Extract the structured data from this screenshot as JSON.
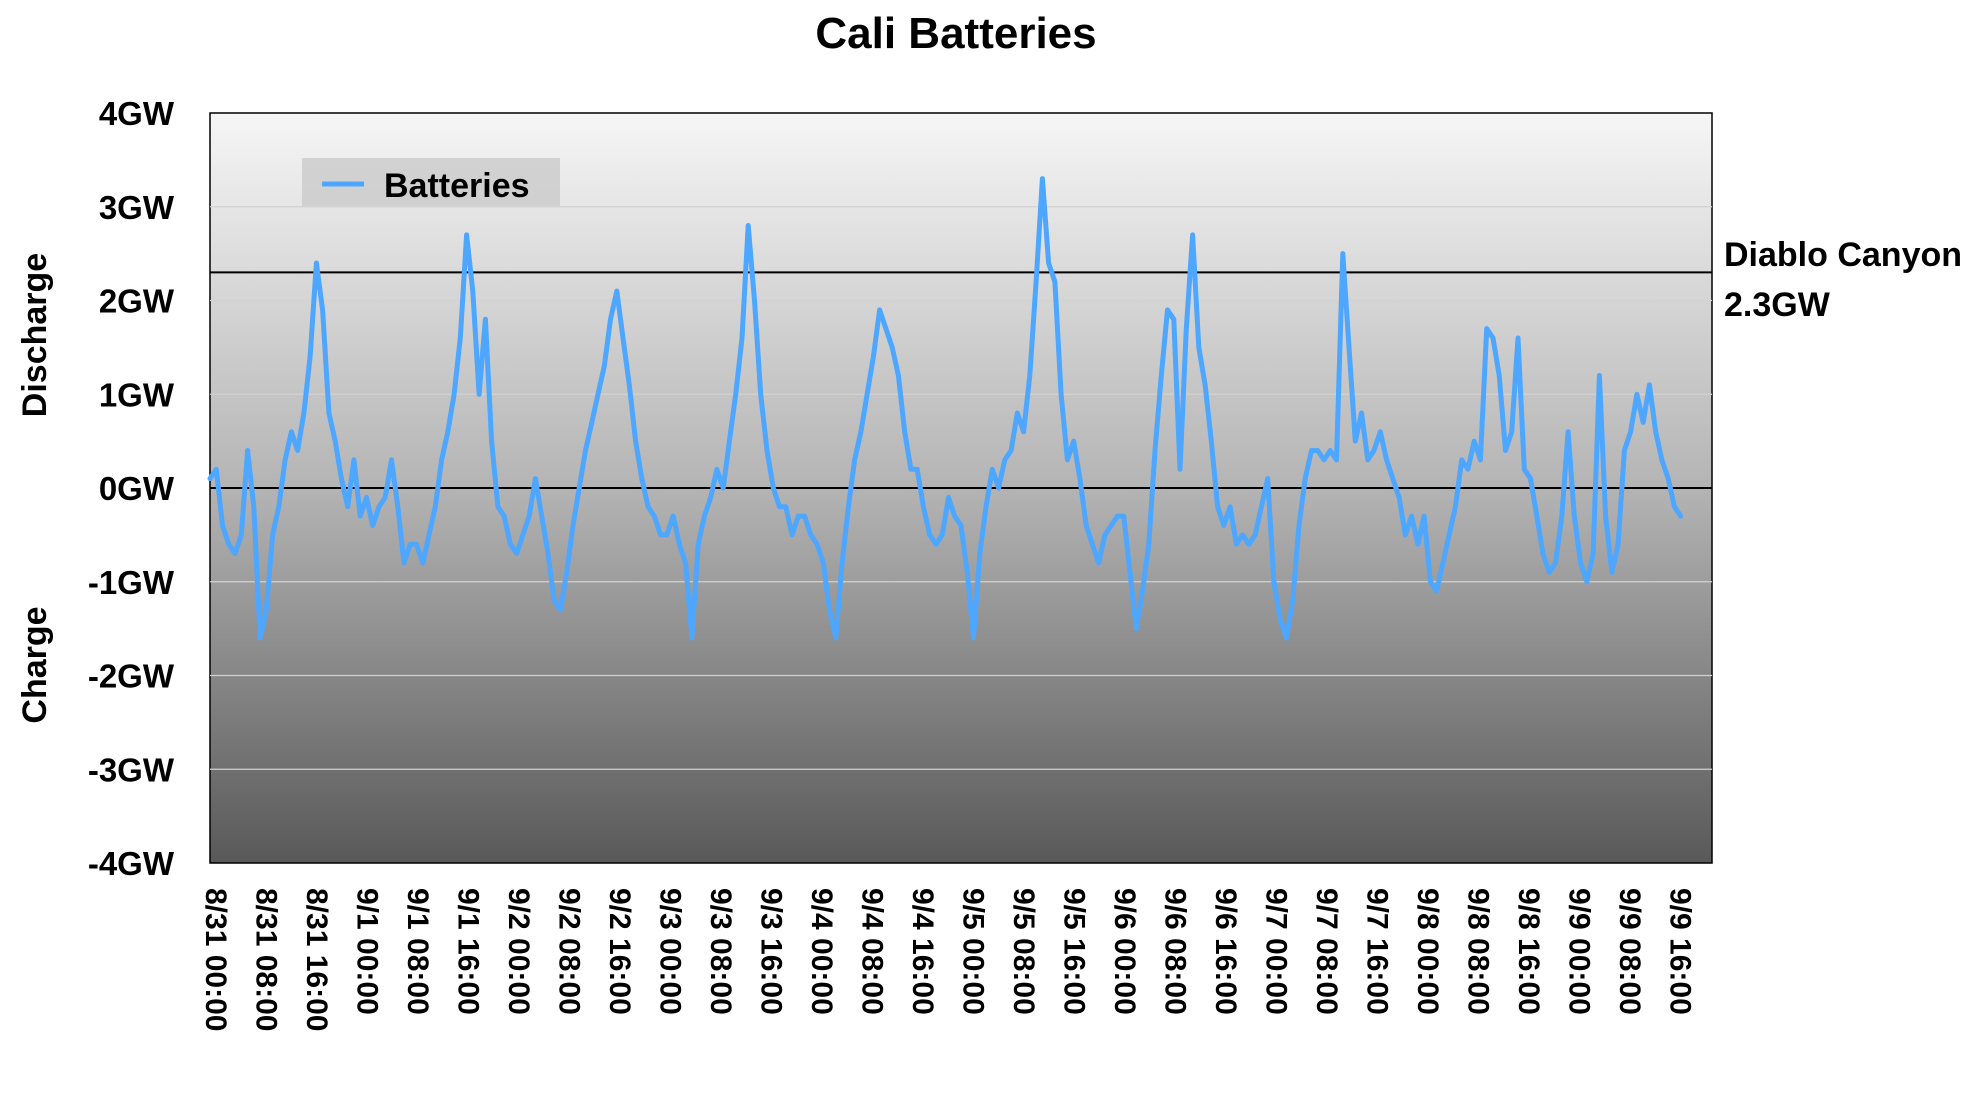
{
  "chart_data": {
    "type": "line",
    "title": "Cali Batteries",
    "ylabel_top": "Discharge",
    "ylabel_bottom": "Charge",
    "ylim": [
      -4,
      4
    ],
    "yticks": [
      -4,
      -3,
      -2,
      -1,
      0,
      1,
      2,
      3,
      4
    ],
    "ytick_labels": [
      "-4GW",
      "-3GW",
      "-2GW",
      "-1GW",
      "0GW",
      "1GW",
      "2GW",
      "3GW",
      "4GW"
    ],
    "xlim_hours": [
      0,
      240
    ],
    "xtick_labels": [
      "8/31 00:00",
      "8/31 08:00",
      "8/31 16:00",
      "9/1 00:00",
      "9/1 08:00",
      "9/1 16:00",
      "9/2 00:00",
      "9/2 08:00",
      "9/2 16:00",
      "9/3 00:00",
      "9/3 08:00",
      "9/3 16:00",
      "9/4 00:00",
      "9/4 08:00",
      "9/4 16:00",
      "9/5 00:00",
      "9/5 08:00",
      "9/5 16:00",
      "9/6 00:00",
      "9/6 08:00",
      "9/6 16:00",
      "9/7 00:00",
      "9/7 08:00",
      "9/7 16:00",
      "9/8 00:00",
      "9/8 08:00",
      "9/8 16:00",
      "9/9 00:00",
      "9/9 08:00",
      "9/9 16:00"
    ],
    "legend": {
      "position": "top-left",
      "entries": [
        "Batteries"
      ]
    },
    "grid": true,
    "reference_lines": [
      {
        "y": 2.3,
        "label_line1": "Diablo Canyon",
        "label_line2": "2.3GW"
      },
      {
        "y": 0
      }
    ],
    "series": [
      {
        "name": "Batteries",
        "color": "#4da6ff",
        "points": [
          [
            0,
            0.1
          ],
          [
            1,
            0.2
          ],
          [
            2,
            -0.4
          ],
          [
            3,
            -0.6
          ],
          [
            4,
            -0.7
          ],
          [
            5,
            -0.5
          ],
          [
            6,
            0.4
          ],
          [
            7,
            -0.2
          ],
          [
            8,
            -1.6
          ],
          [
            9,
            -1.3
          ],
          [
            10,
            -0.5
          ],
          [
            11,
            -0.2
          ],
          [
            12,
            0.3
          ],
          [
            13,
            0.6
          ],
          [
            14,
            0.4
          ],
          [
            15,
            0.8
          ],
          [
            16,
            1.4
          ],
          [
            17,
            2.4
          ],
          [
            18,
            1.9
          ],
          [
            19,
            0.8
          ],
          [
            20,
            0.5
          ],
          [
            21,
            0.1
          ],
          [
            22,
            -0.2
          ],
          [
            23,
            0.3
          ],
          [
            24,
            -0.3
          ],
          [
            25,
            -0.1
          ],
          [
            26,
            -0.4
          ],
          [
            27,
            -0.2
          ],
          [
            28,
            -0.1
          ],
          [
            29,
            0.3
          ],
          [
            30,
            -0.2
          ],
          [
            31,
            -0.8
          ],
          [
            32,
            -0.6
          ],
          [
            33,
            -0.6
          ],
          [
            34,
            -0.8
          ],
          [
            35,
            -0.5
          ],
          [
            36,
            -0.2
          ],
          [
            37,
            0.3
          ],
          [
            38,
            0.6
          ],
          [
            39,
            1.0
          ],
          [
            40,
            1.6
          ],
          [
            41,
            2.7
          ],
          [
            42,
            2.1
          ],
          [
            43,
            1.0
          ],
          [
            44,
            1.8
          ],
          [
            45,
            0.5
          ],
          [
            46,
            -0.2
          ],
          [
            47,
            -0.3
          ],
          [
            48,
            -0.6
          ],
          [
            49,
            -0.7
          ],
          [
            50,
            -0.5
          ],
          [
            51,
            -0.3
          ],
          [
            52,
            0.1
          ],
          [
            53,
            -0.3
          ],
          [
            54,
            -0.7
          ],
          [
            55,
            -1.2
          ],
          [
            56,
            -1.3
          ],
          [
            57,
            -0.9
          ],
          [
            58,
            -0.4
          ],
          [
            59,
            0.0
          ],
          [
            60,
            0.4
          ],
          [
            61,
            0.7
          ],
          [
            62,
            1.0
          ],
          [
            63,
            1.3
          ],
          [
            64,
            1.8
          ],
          [
            65,
            2.1
          ],
          [
            66,
            1.6
          ],
          [
            67,
            1.1
          ],
          [
            68,
            0.5
          ],
          [
            69,
            0.1
          ],
          [
            70,
            -0.2
          ],
          [
            71,
            -0.3
          ],
          [
            72,
            -0.5
          ],
          [
            73,
            -0.5
          ],
          [
            74,
            -0.3
          ],
          [
            75,
            -0.6
          ],
          [
            76,
            -0.8
          ],
          [
            77,
            -1.6
          ],
          [
            78,
            -0.6
          ],
          [
            79,
            -0.3
          ],
          [
            80,
            -0.1
          ],
          [
            81,
            0.2
          ],
          [
            82,
            0.0
          ],
          [
            83,
            0.5
          ],
          [
            84,
            1.0
          ],
          [
            85,
            1.6
          ],
          [
            86,
            2.8
          ],
          [
            87,
            2.0
          ],
          [
            88,
            1.0
          ],
          [
            89,
            0.4
          ],
          [
            90,
            0.0
          ],
          [
            91,
            -0.2
          ],
          [
            92,
            -0.2
          ],
          [
            93,
            -0.5
          ],
          [
            94,
            -0.3
          ],
          [
            95,
            -0.3
          ],
          [
            96,
            -0.5
          ],
          [
            97,
            -0.6
          ],
          [
            98,
            -0.8
          ],
          [
            99,
            -1.3
          ],
          [
            100,
            -1.6
          ],
          [
            101,
            -0.8
          ],
          [
            102,
            -0.2
          ],
          [
            103,
            0.3
          ],
          [
            104,
            0.6
          ],
          [
            105,
            1.0
          ],
          [
            106,
            1.4
          ],
          [
            107,
            1.9
          ],
          [
            108,
            1.7
          ],
          [
            109,
            1.5
          ],
          [
            110,
            1.2
          ],
          [
            111,
            0.6
          ],
          [
            112,
            0.2
          ],
          [
            113,
            0.2
          ],
          [
            114,
            -0.2
          ],
          [
            115,
            -0.5
          ],
          [
            116,
            -0.6
          ],
          [
            117,
            -0.5
          ],
          [
            118,
            -0.1
          ],
          [
            119,
            -0.3
          ],
          [
            120,
            -0.4
          ],
          [
            121,
            -0.9
          ],
          [
            122,
            -1.6
          ],
          [
            123,
            -0.7
          ],
          [
            124,
            -0.2
          ],
          [
            125,
            0.2
          ],
          [
            126,
            0.0
          ],
          [
            127,
            0.3
          ],
          [
            128,
            0.4
          ],
          [
            129,
            0.8
          ],
          [
            130,
            0.6
          ],
          [
            131,
            1.2
          ],
          [
            132,
            2.2
          ],
          [
            133,
            3.3
          ],
          [
            134,
            2.4
          ],
          [
            135,
            2.2
          ],
          [
            136,
            1.0
          ],
          [
            137,
            0.3
          ],
          [
            138,
            0.5
          ],
          [
            139,
            0.1
          ],
          [
            140,
            -0.4
          ],
          [
            141,
            -0.6
          ],
          [
            142,
            -0.8
          ],
          [
            143,
            -0.5
          ],
          [
            144,
            -0.4
          ],
          [
            145,
            -0.3
          ],
          [
            146,
            -0.3
          ],
          [
            147,
            -0.9
          ],
          [
            148,
            -1.5
          ],
          [
            149,
            -1.1
          ],
          [
            150,
            -0.6
          ],
          [
            151,
            0.4
          ],
          [
            152,
            1.2
          ],
          [
            153,
            1.9
          ],
          [
            154,
            1.8
          ],
          [
            155,
            0.2
          ],
          [
            156,
            1.7
          ],
          [
            157,
            2.7
          ],
          [
            158,
            1.5
          ],
          [
            159,
            1.1
          ],
          [
            160,
            0.5
          ],
          [
            161,
            -0.2
          ],
          [
            162,
            -0.4
          ],
          [
            163,
            -0.2
          ],
          [
            164,
            -0.6
          ],
          [
            165,
            -0.5
          ],
          [
            166,
            -0.6
          ],
          [
            167,
            -0.5
          ],
          [
            168,
            -0.2
          ],
          [
            169,
            0.1
          ],
          [
            170,
            -1.0
          ],
          [
            171,
            -1.4
          ],
          [
            172,
            -1.6
          ],
          [
            173,
            -1.2
          ],
          [
            174,
            -0.4
          ],
          [
            175,
            0.1
          ],
          [
            176,
            0.4
          ],
          [
            177,
            0.4
          ],
          [
            178,
            0.3
          ],
          [
            179,
            0.4
          ],
          [
            180,
            0.3
          ],
          [
            181,
            2.5
          ],
          [
            182,
            1.5
          ],
          [
            183,
            0.5
          ],
          [
            184,
            0.8
          ],
          [
            185,
            0.3
          ],
          [
            186,
            0.4
          ],
          [
            187,
            0.6
          ],
          [
            188,
            0.3
          ],
          [
            189,
            0.1
          ],
          [
            190,
            -0.1
          ],
          [
            191,
            -0.5
          ],
          [
            192,
            -0.3
          ],
          [
            193,
            -0.6
          ],
          [
            194,
            -0.3
          ],
          [
            195,
            -1.0
          ],
          [
            196,
            -1.1
          ],
          [
            197,
            -0.8
          ],
          [
            198,
            -0.5
          ],
          [
            199,
            -0.2
          ],
          [
            200,
            0.3
          ],
          [
            201,
            0.2
          ],
          [
            202,
            0.5
          ],
          [
            203,
            0.3
          ],
          [
            204,
            1.7
          ],
          [
            205,
            1.6
          ],
          [
            206,
            1.2
          ],
          [
            207,
            0.4
          ],
          [
            208,
            0.6
          ],
          [
            209,
            1.6
          ],
          [
            210,
            0.2
          ],
          [
            211,
            0.1
          ],
          [
            212,
            -0.3
          ],
          [
            213,
            -0.7
          ],
          [
            214,
            -0.9
          ],
          [
            215,
            -0.8
          ],
          [
            216,
            -0.3
          ],
          [
            217,
            0.6
          ],
          [
            218,
            -0.3
          ],
          [
            219,
            -0.8
          ],
          [
            220,
            -1.0
          ],
          [
            221,
            -0.7
          ],
          [
            222,
            1.2
          ],
          [
            223,
            -0.3
          ],
          [
            224,
            -0.9
          ],
          [
            225,
            -0.6
          ],
          [
            226,
            0.4
          ],
          [
            227,
            0.6
          ],
          [
            228,
            1.0
          ],
          [
            229,
            0.7
          ],
          [
            230,
            1.1
          ],
          [
            231,
            0.6
          ],
          [
            232,
            0.3
          ],
          [
            233,
            0.1
          ],
          [
            234,
            -0.2
          ],
          [
            235,
            -0.3
          ]
        ]
      }
    ]
  }
}
